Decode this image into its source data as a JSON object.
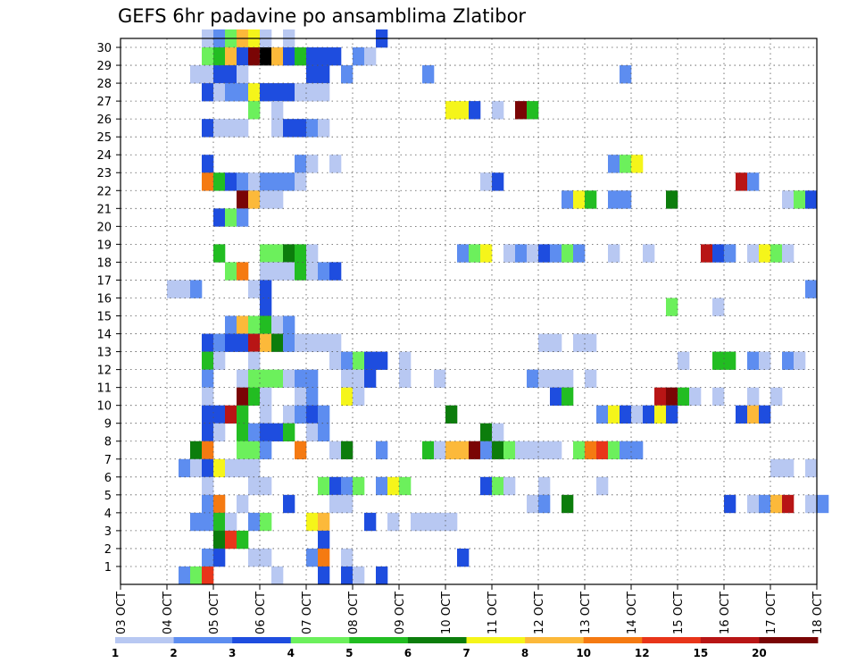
{
  "chart_data": {
    "type": "heatmap",
    "title": "GEFS 6hr padavine po ansamblima Zlatibor",
    "x_tick_labels": [
      "03 OCT",
      "04 OCT",
      "05 OCT",
      "06 OCT",
      "07 OCT",
      "08 OCT",
      "09 OCT",
      "10 OCT",
      "11 OCT",
      "12 OCT",
      "13 OCT",
      "14 OCT",
      "15 OCT",
      "16 OCT",
      "17 OCT",
      "18 OCT"
    ],
    "y_tick_labels": [
      "1",
      "2",
      "3",
      "4",
      "5",
      "6",
      "7",
      "8",
      "9",
      "10",
      "11",
      "12",
      "13",
      "14",
      "15",
      "16",
      "17",
      "18",
      "19",
      "20",
      "21",
      "22",
      "23",
      "24",
      "25",
      "26",
      "27",
      "28",
      "29",
      "30"
    ],
    "x_range_days": [
      0,
      15
    ],
    "y_range_members": [
      0,
      30
    ],
    "time_step_hours": 6,
    "grid": "dotted",
    "legend_position": "bottom",
    "colorbar": {
      "labels": [
        "1",
        "2",
        "3",
        "4",
        "5",
        "6",
        "7",
        "8",
        "10",
        "12",
        "15",
        "20"
      ],
      "colors": [
        "#b8c8f2",
        "#5d8df0",
        "#1e4ddf",
        "#6cf05c",
        "#22bd22",
        "#0c7d0c",
        "#f5f51a",
        "#fcb93a",
        "#f57a12",
        "#e8351a",
        "#b81515",
        "#7a0505"
      ]
    },
    "columns_range": "time step index 0 = 03 OCT 00z, 4 steps per day",
    "cells": [
      [
        30,
        7,
        0
      ],
      [
        30,
        8,
        1
      ],
      [
        30,
        9,
        3
      ],
      [
        30,
        10,
        7
      ],
      [
        30,
        11,
        6
      ],
      [
        30,
        12,
        0
      ],
      [
        30,
        14,
        0
      ],
      [
        30,
        22,
        2
      ],
      [
        29,
        7,
        3
      ],
      [
        29,
        8,
        4
      ],
      [
        29,
        9,
        7
      ],
      [
        29,
        10,
        2
      ],
      [
        29,
        11,
        11
      ],
      [
        29,
        12,
        12
      ],
      [
        29,
        13,
        7
      ],
      [
        29,
        14,
        2
      ],
      [
        29,
        15,
        4
      ],
      [
        29,
        16,
        2
      ],
      [
        29,
        17,
        2
      ],
      [
        29,
        18,
        2
      ],
      [
        29,
        20,
        1
      ],
      [
        29,
        21,
        0
      ],
      [
        28,
        6,
        0
      ],
      [
        28,
        7,
        0
      ],
      [
        28,
        8,
        2
      ],
      [
        28,
        9,
        2
      ],
      [
        28,
        10,
        0
      ],
      [
        28,
        16,
        2
      ],
      [
        28,
        17,
        2
      ],
      [
        28,
        19,
        1
      ],
      [
        28,
        26,
        1
      ],
      [
        28,
        43,
        1
      ],
      [
        27,
        7,
        2
      ],
      [
        27,
        8,
        0
      ],
      [
        27,
        9,
        1
      ],
      [
        27,
        10,
        1
      ],
      [
        27,
        11,
        6
      ],
      [
        27,
        12,
        2
      ],
      [
        27,
        13,
        2
      ],
      [
        27,
        14,
        2
      ],
      [
        27,
        15,
        0
      ],
      [
        27,
        16,
        0
      ],
      [
        27,
        17,
        0
      ],
      [
        26,
        11,
        3
      ],
      [
        26,
        13,
        0
      ],
      [
        26,
        28,
        6
      ],
      [
        26,
        29,
        6
      ],
      [
        26,
        30,
        2
      ],
      [
        26,
        32,
        0
      ],
      [
        26,
        34,
        11
      ],
      [
        26,
        35,
        4
      ],
      [
        25,
        7,
        2
      ],
      [
        25,
        8,
        0
      ],
      [
        25,
        9,
        0
      ],
      [
        25,
        10,
        0
      ],
      [
        25,
        13,
        0
      ],
      [
        25,
        14,
        2
      ],
      [
        25,
        15,
        2
      ],
      [
        25,
        16,
        1
      ],
      [
        25,
        17,
        0
      ],
      [
        23,
        7,
        2
      ],
      [
        23,
        15,
        1
      ],
      [
        23,
        16,
        0
      ],
      [
        23,
        18,
        0
      ],
      [
        23,
        42,
        1
      ],
      [
        23,
        43,
        3
      ],
      [
        23,
        44,
        6
      ],
      [
        22,
        7,
        8
      ],
      [
        22,
        8,
        4
      ],
      [
        22,
        9,
        2
      ],
      [
        22,
        10,
        1
      ],
      [
        22,
        11,
        0
      ],
      [
        22,
        12,
        1
      ],
      [
        22,
        13,
        1
      ],
      [
        22,
        14,
        1
      ],
      [
        22,
        15,
        0
      ],
      [
        22,
        31,
        0
      ],
      [
        22,
        32,
        2
      ],
      [
        22,
        53,
        10
      ],
      [
        22,
        54,
        1
      ],
      [
        21,
        10,
        11
      ],
      [
        21,
        11,
        7
      ],
      [
        21,
        12,
        0
      ],
      [
        21,
        13,
        0
      ],
      [
        21,
        38,
        1
      ],
      [
        21,
        39,
        6
      ],
      [
        21,
        40,
        4
      ],
      [
        21,
        42,
        1
      ],
      [
        21,
        43,
        1
      ],
      [
        21,
        47,
        5
      ],
      [
        21,
        57,
        0
      ],
      [
        21,
        58,
        3
      ],
      [
        21,
        59,
        2
      ],
      [
        20,
        8,
        2
      ],
      [
        20,
        9,
        3
      ],
      [
        20,
        10,
        1
      ],
      [
        18,
        8,
        4
      ],
      [
        18,
        12,
        3
      ],
      [
        18,
        13,
        3
      ],
      [
        18,
        14,
        5
      ],
      [
        18,
        15,
        4
      ],
      [
        18,
        16,
        0
      ],
      [
        18,
        29,
        1
      ],
      [
        18,
        30,
        3
      ],
      [
        18,
        31,
        6
      ],
      [
        18,
        33,
        0
      ],
      [
        18,
        34,
        1
      ],
      [
        18,
        35,
        0
      ],
      [
        18,
        36,
        2
      ],
      [
        18,
        37,
        1
      ],
      [
        18,
        38,
        3
      ],
      [
        18,
        39,
        1
      ],
      [
        18,
        42,
        0
      ],
      [
        18,
        45,
        0
      ],
      [
        18,
        50,
        10
      ],
      [
        18,
        51,
        2
      ],
      [
        18,
        52,
        1
      ],
      [
        18,
        54,
        0
      ],
      [
        18,
        55,
        6
      ],
      [
        18,
        56,
        3
      ],
      [
        18,
        57,
        0
      ],
      [
        17,
        9,
        3
      ],
      [
        17,
        10,
        8
      ],
      [
        17,
        12,
        0
      ],
      [
        17,
        13,
        0
      ],
      [
        17,
        14,
        0
      ],
      [
        17,
        15,
        4
      ],
      [
        17,
        16,
        0
      ],
      [
        17,
        17,
        1
      ],
      [
        17,
        18,
        2
      ],
      [
        16,
        4,
        0
      ],
      [
        16,
        5,
        0
      ],
      [
        16,
        6,
        1
      ],
      [
        16,
        11,
        0
      ],
      [
        16,
        12,
        2
      ],
      [
        16,
        59,
        1
      ],
      [
        15,
        12,
        2
      ],
      [
        15,
        47,
        3
      ],
      [
        15,
        51,
        0
      ],
      [
        14,
        9,
        1
      ],
      [
        14,
        10,
        7
      ],
      [
        14,
        11,
        3
      ],
      [
        14,
        12,
        4
      ],
      [
        14,
        13,
        0
      ],
      [
        14,
        14,
        1
      ],
      [
        13,
        7,
        2
      ],
      [
        13,
        8,
        1
      ],
      [
        13,
        9,
        2
      ],
      [
        13,
        10,
        2
      ],
      [
        13,
        11,
        10
      ],
      [
        13,
        12,
        7
      ],
      [
        13,
        13,
        5
      ],
      [
        13,
        14,
        1
      ],
      [
        13,
        15,
        0
      ],
      [
        13,
        16,
        0
      ],
      [
        13,
        17,
        0
      ],
      [
        13,
        18,
        0
      ],
      [
        13,
        36,
        0
      ],
      [
        13,
        37,
        0
      ],
      [
        13,
        39,
        0
      ],
      [
        13,
        40,
        0
      ],
      [
        12,
        7,
        4
      ],
      [
        12,
        8,
        0
      ],
      [
        12,
        11,
        0
      ],
      [
        12,
        18,
        0
      ],
      [
        12,
        19,
        1
      ],
      [
        12,
        20,
        3
      ],
      [
        12,
        21,
        2
      ],
      [
        12,
        22,
        2
      ],
      [
        12,
        24,
        0
      ],
      [
        12,
        48,
        0
      ],
      [
        12,
        51,
        4
      ],
      [
        12,
        52,
        4
      ],
      [
        12,
        54,
        1
      ],
      [
        12,
        55,
        0
      ],
      [
        12,
        57,
        1
      ],
      [
        12,
        58,
        0
      ],
      [
        11,
        7,
        1
      ],
      [
        11,
        10,
        0
      ],
      [
        11,
        11,
        3
      ],
      [
        11,
        12,
        3
      ],
      [
        11,
        13,
        3
      ],
      [
        11,
        14,
        0
      ],
      [
        11,
        15,
        1
      ],
      [
        11,
        16,
        1
      ],
      [
        11,
        19,
        0
      ],
      [
        11,
        20,
        0
      ],
      [
        11,
        21,
        2
      ],
      [
        11,
        24,
        0
      ],
      [
        11,
        27,
        0
      ],
      [
        11,
        35,
        1
      ],
      [
        11,
        36,
        0
      ],
      [
        11,
        37,
        0
      ],
      [
        11,
        38,
        0
      ],
      [
        11,
        40,
        0
      ],
      [
        10,
        7,
        0
      ],
      [
        10,
        10,
        11
      ],
      [
        10,
        11,
        4
      ],
      [
        10,
        12,
        0
      ],
      [
        10,
        15,
        0
      ],
      [
        10,
        16,
        1
      ],
      [
        10,
        19,
        6
      ],
      [
        10,
        20,
        0
      ],
      [
        10,
        37,
        2
      ],
      [
        10,
        38,
        4
      ],
      [
        10,
        46,
        10
      ],
      [
        10,
        47,
        11
      ],
      [
        10,
        48,
        4
      ],
      [
        10,
        49,
        0
      ],
      [
        10,
        51,
        0
      ],
      [
        10,
        54,
        0
      ],
      [
        10,
        56,
        0
      ],
      [
        9,
        7,
        2
      ],
      [
        9,
        8,
        2
      ],
      [
        9,
        9,
        10
      ],
      [
        9,
        10,
        4
      ],
      [
        9,
        12,
        0
      ],
      [
        9,
        14,
        0
      ],
      [
        9,
        15,
        1
      ],
      [
        9,
        16,
        2
      ],
      [
        9,
        17,
        1
      ],
      [
        9,
        28,
        5
      ],
      [
        9,
        41,
        1
      ],
      [
        9,
        42,
        6
      ],
      [
        9,
        43,
        2
      ],
      [
        9,
        44,
        0
      ],
      [
        9,
        45,
        2
      ],
      [
        9,
        46,
        6
      ],
      [
        9,
        47,
        2
      ],
      [
        9,
        53,
        2
      ],
      [
        9,
        54,
        7
      ],
      [
        9,
        55,
        2
      ],
      [
        8,
        7,
        2
      ],
      [
        8,
        8,
        0
      ],
      [
        8,
        10,
        4
      ],
      [
        8,
        11,
        1
      ],
      [
        8,
        12,
        2
      ],
      [
        8,
        13,
        2
      ],
      [
        8,
        14,
        4
      ],
      [
        8,
        16,
        0
      ],
      [
        8,
        17,
        1
      ],
      [
        8,
        31,
        5
      ],
      [
        8,
        32,
        0
      ],
      [
        7,
        6,
        5
      ],
      [
        7,
        7,
        8
      ],
      [
        7,
        10,
        3
      ],
      [
        7,
        11,
        3
      ],
      [
        7,
        12,
        1
      ],
      [
        7,
        15,
        8
      ],
      [
        7,
        18,
        0
      ],
      [
        7,
        19,
        5
      ],
      [
        7,
        22,
        1
      ],
      [
        7,
        26,
        4
      ],
      [
        7,
        27,
        0
      ],
      [
        7,
        28,
        7
      ],
      [
        7,
        29,
        7
      ],
      [
        7,
        30,
        11
      ],
      [
        7,
        31,
        1
      ],
      [
        7,
        32,
        5
      ],
      [
        7,
        33,
        3
      ],
      [
        7,
        34,
        0
      ],
      [
        7,
        35,
        0
      ],
      [
        7,
        36,
        0
      ],
      [
        7,
        37,
        0
      ],
      [
        7,
        39,
        3
      ],
      [
        7,
        40,
        8
      ],
      [
        7,
        41,
        9
      ],
      [
        7,
        42,
        3
      ],
      [
        7,
        43,
        1
      ],
      [
        7,
        44,
        1
      ],
      [
        6,
        5,
        1
      ],
      [
        6,
        6,
        0
      ],
      [
        6,
        7,
        2
      ],
      [
        6,
        8,
        6
      ],
      [
        6,
        9,
        0
      ],
      [
        6,
        10,
        0
      ],
      [
        6,
        11,
        0
      ],
      [
        6,
        56,
        0
      ],
      [
        6,
        57,
        0
      ],
      [
        6,
        59,
        0
      ],
      [
        5,
        7,
        0
      ],
      [
        5,
        11,
        0
      ],
      [
        5,
        12,
        0
      ],
      [
        5,
        17,
        3
      ],
      [
        5,
        18,
        2
      ],
      [
        5,
        19,
        1
      ],
      [
        5,
        20,
        3
      ],
      [
        5,
        22,
        1
      ],
      [
        5,
        23,
        6
      ],
      [
        5,
        24,
        3
      ],
      [
        5,
        31,
        2
      ],
      [
        5,
        32,
        3
      ],
      [
        5,
        33,
        0
      ],
      [
        5,
        36,
        0
      ],
      [
        5,
        41,
        0
      ],
      [
        4,
        7,
        1
      ],
      [
        4,
        8,
        8
      ],
      [
        4,
        10,
        0
      ],
      [
        4,
        14,
        2
      ],
      [
        4,
        18,
        0
      ],
      [
        4,
        19,
        0
      ],
      [
        4,
        35,
        0
      ],
      [
        4,
        36,
        1
      ],
      [
        4,
        38,
        5
      ],
      [
        4,
        52,
        2
      ],
      [
        4,
        54,
        0
      ],
      [
        4,
        55,
        1
      ],
      [
        4,
        56,
        7
      ],
      [
        4,
        57,
        10
      ],
      [
        4,
        59,
        0
      ],
      [
        4,
        60,
        1
      ],
      [
        3,
        6,
        1
      ],
      [
        3,
        7,
        1
      ],
      [
        3,
        8,
        4
      ],
      [
        3,
        9,
        0
      ],
      [
        3,
        11,
        1
      ],
      [
        3,
        12,
        3
      ],
      [
        3,
        16,
        6
      ],
      [
        3,
        17,
        7
      ],
      [
        3,
        21,
        2
      ],
      [
        3,
        23,
        0
      ],
      [
        3,
        25,
        0
      ],
      [
        3,
        26,
        0
      ],
      [
        3,
        27,
        0
      ],
      [
        3,
        28,
        0
      ],
      [
        2,
        8,
        5
      ],
      [
        2,
        9,
        9
      ],
      [
        2,
        10,
        4
      ],
      [
        2,
        17,
        2
      ],
      [
        1,
        7,
        1
      ],
      [
        1,
        8,
        2
      ],
      [
        1,
        11,
        0
      ],
      [
        1,
        12,
        0
      ],
      [
        1,
        16,
        1
      ],
      [
        1,
        17,
        8
      ],
      [
        1,
        19,
        0
      ],
      [
        1,
        29,
        2
      ],
      [
        0,
        5,
        1
      ],
      [
        0,
        6,
        3
      ],
      [
        0,
        7,
        9
      ],
      [
        0,
        13,
        0
      ],
      [
        0,
        17,
        2
      ],
      [
        0,
        19,
        2
      ],
      [
        0,
        20,
        0
      ],
      [
        0,
        22,
        2
      ]
    ]
  }
}
